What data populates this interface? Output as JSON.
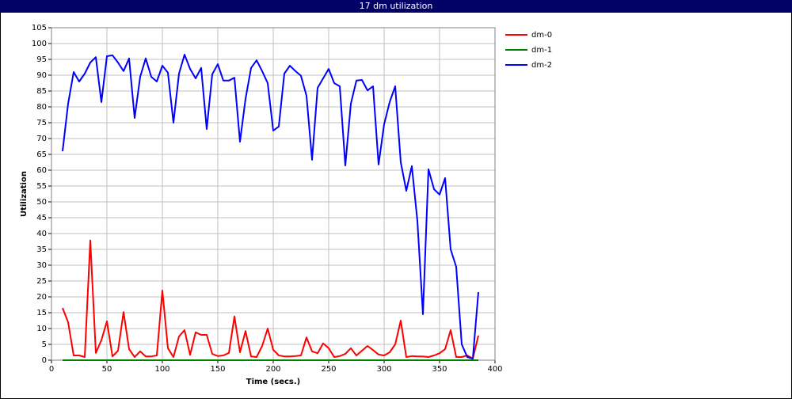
{
  "chart_data": {
    "type": "line",
    "title": "17 dm utilization",
    "x_label": "Time (secs.)",
    "y_label": "Utilization",
    "xlim": [
      0,
      400
    ],
    "xticks": [
      0,
      50,
      100,
      150,
      200,
      250,
      300,
      350,
      400
    ],
    "ylim": [
      0,
      105
    ],
    "yticks": [
      0,
      5,
      10,
      15,
      20,
      25,
      30,
      35,
      40,
      45,
      50,
      55,
      60,
      65,
      70,
      75,
      80,
      85,
      90,
      95,
      100,
      105
    ],
    "grid": true,
    "legend": "right",
    "x": [
      10,
      15,
      20,
      25,
      30,
      35,
      40,
      45,
      50,
      55,
      60,
      65,
      70,
      75,
      80,
      85,
      90,
      95,
      100,
      105,
      110,
      115,
      120,
      125,
      130,
      135,
      140,
      145,
      150,
      155,
      160,
      165,
      170,
      175,
      180,
      185,
      190,
      195,
      200,
      205,
      210,
      215,
      220,
      225,
      230,
      235,
      240,
      245,
      250,
      255,
      260,
      265,
      270,
      275,
      280,
      285,
      290,
      295,
      300,
      305,
      310,
      315,
      320,
      325,
      330,
      335,
      340,
      345,
      350,
      355,
      360,
      365,
      370,
      375,
      380,
      385
    ],
    "series": [
      {
        "name": "dm-0",
        "color": "#ff0000",
        "values": [
          16.5,
          12,
          1.5,
          1.5,
          1,
          37.8,
          2.3,
          6.3,
          12.3,
          1.2,
          3,
          15.2,
          3.5,
          1,
          2.8,
          1.2,
          1.2,
          1.5,
          22,
          3.8,
          1,
          7.5,
          9.5,
          1.7,
          8.8,
          8,
          8,
          2,
          1.3,
          1.5,
          2.3,
          13.8,
          2.5,
          9.2,
          1.2,
          1,
          4.5,
          10,
          3.3,
          1.5,
          1.2,
          1.2,
          1.3,
          1.5,
          7.2,
          2.8,
          2.2,
          5.3,
          3.8,
          1,
          1.3,
          2,
          3.8,
          1.5,
          3,
          4.5,
          3.2,
          1.8,
          1.5,
          2.5,
          5,
          12.5,
          1,
          1.3,
          1.2,
          1.2,
          1,
          1.5,
          2.2,
          3.5,
          9.5,
          1,
          1,
          1.5,
          0.5,
          7.8
        ]
      },
      {
        "name": "dm-1",
        "color": "#008000",
        "values": [
          0,
          0,
          0,
          0,
          0,
          0,
          0,
          0,
          0,
          0,
          0,
          0,
          0,
          0,
          0,
          0,
          0,
          0,
          0,
          0,
          0,
          0,
          0,
          0,
          0,
          0,
          0,
          0,
          0,
          0,
          0,
          0,
          0,
          0,
          0,
          0,
          0,
          0,
          0,
          0,
          0,
          0,
          0,
          0,
          0,
          0,
          0,
          0,
          0,
          0,
          0,
          0,
          0,
          0,
          0,
          0,
          0,
          0,
          0,
          0,
          0,
          0,
          0,
          0,
          0,
          0,
          0,
          0,
          0,
          0,
          0,
          0,
          0,
          0,
          0,
          0
        ]
      },
      {
        "name": "dm-2",
        "color": "#0000ff",
        "values": [
          66,
          81,
          91,
          88,
          90.5,
          94,
          95.7,
          81.5,
          96,
          96.3,
          94,
          91.3,
          95.3,
          76.5,
          89.5,
          95.3,
          89.5,
          88,
          93,
          90.8,
          75,
          90.5,
          96.5,
          92,
          89,
          92.3,
          73,
          90.3,
          93.5,
          88.3,
          88.3,
          89.2,
          69,
          82.5,
          92.3,
          94.7,
          91.3,
          87.5,
          72.5,
          73.8,
          90.5,
          93,
          91.3,
          89.8,
          83.5,
          63.3,
          86,
          89,
          92,
          87.5,
          86.5,
          61.5,
          81,
          88.3,
          88.5,
          85.2,
          86.5,
          61.8,
          74.5,
          81.5,
          86.5,
          62.5,
          53.5,
          61.3,
          44,
          14.5,
          60.3,
          54,
          52.3,
          57.5,
          35,
          29.5,
          5,
          1,
          0.5,
          21.5
        ]
      }
    ]
  }
}
